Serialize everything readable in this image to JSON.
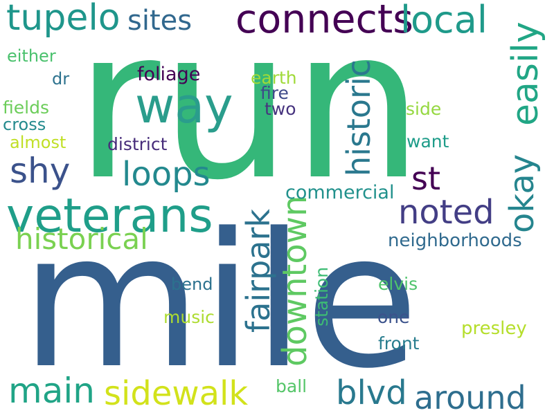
{
  "words": [
    {
      "id": "run",
      "text": "run",
      "color": "#35b779"
    },
    {
      "id": "mile",
      "text": "mile",
      "color": "#355f8d"
    },
    {
      "id": "veterans",
      "text": "veterans",
      "color": "#1f9e89"
    },
    {
      "id": "way",
      "text": "way",
      "color": "#2a9d8c"
    },
    {
      "id": "connects",
      "text": "connects",
      "color": "#440154"
    },
    {
      "id": "tupelo",
      "text": "tupelo",
      "color": "#1f968b"
    },
    {
      "id": "local",
      "text": "local",
      "color": "#1f9a8a"
    },
    {
      "id": "sites",
      "text": "sites",
      "color": "#31688e"
    },
    {
      "id": "easily",
      "text": "easily",
      "color": "#21a685"
    },
    {
      "id": "historic",
      "text": "historic",
      "color": "#2a788e"
    },
    {
      "id": "loops",
      "text": "loops",
      "color": "#23898e"
    },
    {
      "id": "shy",
      "text": "shy",
      "color": "#3b528b"
    },
    {
      "id": "st",
      "text": "st",
      "color": "#440154"
    },
    {
      "id": "okay",
      "text": "okay",
      "color": "#25858e"
    },
    {
      "id": "noted",
      "text": "noted",
      "color": "#433e85"
    },
    {
      "id": "historical",
      "text": "historical",
      "color": "#7ad151"
    },
    {
      "id": "fairpark",
      "text": "fairpark",
      "color": "#2c728e"
    },
    {
      "id": "downtown",
      "text": "downtown",
      "color": "#5ec962"
    },
    {
      "id": "commercial",
      "text": "commercial",
      "color": "#21918c"
    },
    {
      "id": "neighborhoods",
      "text": "neighborhoods",
      "color": "#306a8e"
    },
    {
      "id": "main",
      "text": "main",
      "color": "#20a486"
    },
    {
      "id": "sidewalk",
      "text": "sidewalk",
      "color": "#d2e21b"
    },
    {
      "id": "blvd",
      "text": "blvd",
      "color": "#29798e"
    },
    {
      "id": "around",
      "text": "around",
      "color": "#2e6e8e"
    },
    {
      "id": "foliage",
      "text": "foliage",
      "color": "#440154"
    },
    {
      "id": "earth",
      "text": "earth",
      "color": "#a0da39"
    },
    {
      "id": "fire",
      "text": "fire",
      "color": "#3e4a89"
    },
    {
      "id": "two",
      "text": "two",
      "color": "#46337e"
    },
    {
      "id": "either",
      "text": "either",
      "color": "#4ac16d"
    },
    {
      "id": "dr",
      "text": "dr",
      "color": "#2c728e"
    },
    {
      "id": "fields",
      "text": "fields",
      "color": "#6ccd5a"
    },
    {
      "id": "cross",
      "text": "cross",
      "color": "#238a8d"
    },
    {
      "id": "almost",
      "text": "almost",
      "color": "#c0df25"
    },
    {
      "id": "district",
      "text": "district",
      "color": "#472c7a"
    },
    {
      "id": "side",
      "text": "side",
      "color": "#95d840"
    },
    {
      "id": "want",
      "text": "want",
      "color": "#1e9c89"
    },
    {
      "id": "bend",
      "text": "bend",
      "color": "#2c718e"
    },
    {
      "id": "music",
      "text": "music",
      "color": "#addc30"
    },
    {
      "id": "station",
      "text": "station",
      "color": "#3dbc74"
    },
    {
      "id": "elvis",
      "text": "elvis",
      "color": "#4ec36b"
    },
    {
      "id": "one",
      "text": "one",
      "color": "#3b528b"
    },
    {
      "id": "presley",
      "text": "presley",
      "color": "#b5de2b"
    },
    {
      "id": "front",
      "text": "front",
      "color": "#287d8e"
    },
    {
      "id": "ball",
      "text": "ball",
      "color": "#54c568"
    }
  ]
}
